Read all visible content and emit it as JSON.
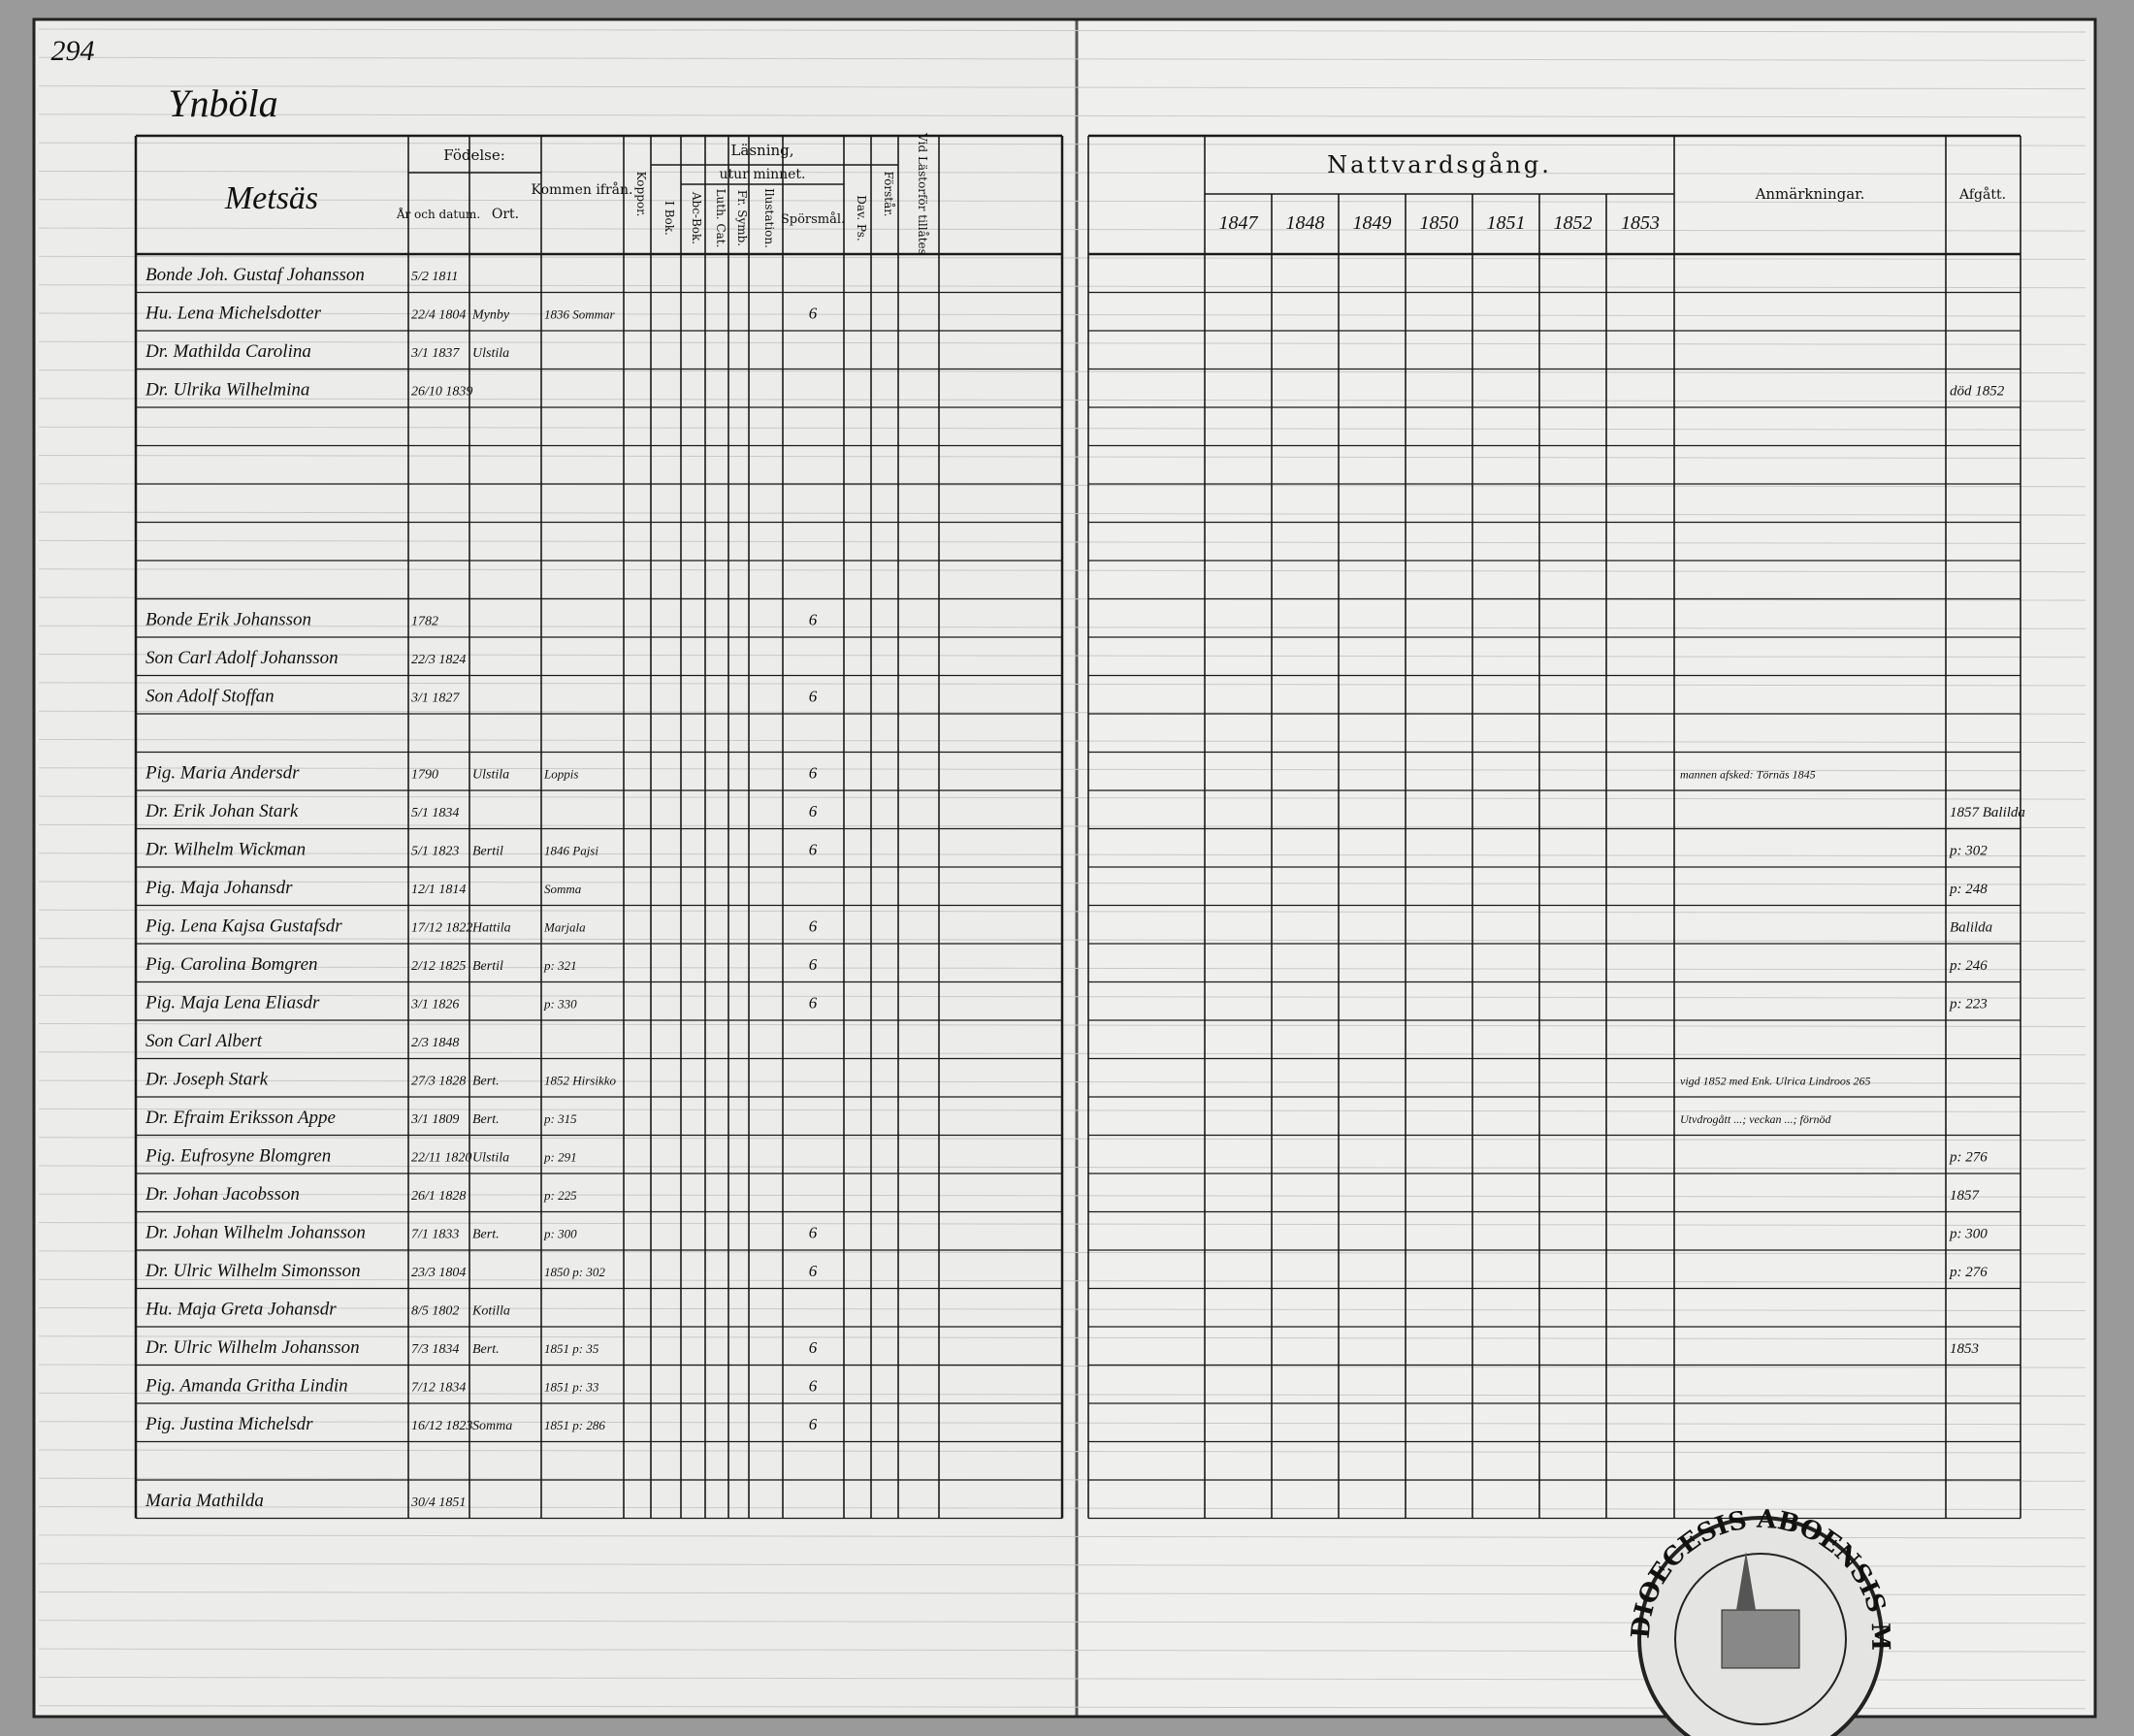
{
  "page_number": "294",
  "village": "Ynböla",
  "farm": "Metsäs",
  "headers": {
    "birth": "Födelse:",
    "birth_date": "År och datum.",
    "birth_place": "Ort.",
    "came_from": "Kommen ifrån.",
    "smallpox": "Koppor.",
    "reading": "Läsning,",
    "by_heart": "utur minnet.",
    "in_book": "I Bok.",
    "abc": "Abc-Bok.",
    "luth_cat": "Luth. Cat.",
    "fr_symb": "Fr. Symb.",
    "illustration": "Ilustation.",
    "questions": "Spörsmål.",
    "dav_ps": "Dav. Ps.",
    "understands": "Förstår.",
    "admitted": "Vid Lästorför tillåtes",
    "communion": "Nattvardsgång.",
    "remarks": "Anmärkningar.",
    "departed": "Afgått."
  },
  "communion_years": [
    "1847",
    "1848",
    "1849",
    "1850",
    "1851",
    "1852",
    "1853"
  ],
  "rows": [
    {
      "name": "Bonde Joh. Gustaf Johansson",
      "date": "5/2 1811"
    },
    {
      "name": "Hu. Lena Michelsdotter",
      "date": "22/4 1804",
      "place": "Mynby",
      "from": "1836 Sommar",
      "questions": "6"
    },
    {
      "name": "Dr. Mathilda Carolina",
      "date": "3/1 1837",
      "place": "Ulstila"
    },
    {
      "name": "Dr. Ulrika Wilhelmina",
      "date": "26/10 1839",
      "departed": "död 1852"
    },
    {
      "name": "Bonde Erik Johansson",
      "date": "1782",
      "questions": "6"
    },
    {
      "name": "Son Carl Adolf Johansson",
      "date": "22/3 1824"
    },
    {
      "name": "Son Adolf Stoffan",
      "date": "3/1 1827",
      "questions": "6"
    },
    {
      "name": "Pig. Maria Andersdr",
      "date": "1790",
      "place": "Ulstila",
      "from": "Loppis",
      "questions": "6",
      "remark": "mannen afsked: Törnäs 1845"
    },
    {
      "name": "Dr. Erik Johan Stark",
      "date": "5/1 1834",
      "questions": "6",
      "departed": "1857 Balilda"
    },
    {
      "name": "Dr. Wilhelm Wickman",
      "date": "5/1 1823",
      "place": "Bertil",
      "from": "1846 Pajsi",
      "questions": "6",
      "departed": "p: 302"
    },
    {
      "name": "Pig. Maja Johansdr",
      "date": "12/1 1814",
      "from": "Somma",
      "departed": "p: 248"
    },
    {
      "name": "Pig. Lena Kajsa Gustafsdr",
      "date": "17/12 1822",
      "place": "Hattila",
      "from": "Marjala",
      "questions": "6",
      "departed": "Balilda"
    },
    {
      "name": "Pig. Carolina Bomgren",
      "date": "2/12 1825",
      "place": "Bertil",
      "from": "p: 321",
      "questions": "6",
      "departed": "p: 246"
    },
    {
      "name": "Pig. Maja Lena Eliasdr",
      "date": "3/1 1826",
      "from": "p: 330",
      "questions": "6",
      "departed": "p: 223"
    },
    {
      "name": "Son Carl Albert",
      "date": "2/3 1848"
    },
    {
      "name": "Dr. Joseph Stark",
      "date": "27/3 1828",
      "place": "Bert.",
      "from": "1852 Hirsikko",
      "remark": "vigd 1852 med Enk. Ulrica Lindroos 265"
    },
    {
      "name": "Dr. Efraim Eriksson Appe",
      "date": "3/1 1809",
      "place": "Bert.",
      "from": "p: 315",
      "remark": "Utvdrogått ...; veckan ...; förnöd"
    },
    {
      "name": "Pig. Eufrosyne Blomgren",
      "date": "22/11 1820",
      "place": "Ulstila",
      "from": "p: 291",
      "departed": "p: 276"
    },
    {
      "name": "Dr. Johan Jacobsson",
      "date": "26/1 1828",
      "from": "p: 225",
      "departed": "1857"
    },
    {
      "name": "Dr. Johan Wilhelm Johansson",
      "date": "7/1 1833",
      "place": "Bert.",
      "from": "p: 300",
      "questions": "6",
      "departed": "p: 300"
    },
    {
      "name": "Dr. Ulric Wilhelm Simonsson",
      "date": "23/3 1804",
      "from": "1850 p: 302",
      "questions": "6",
      "departed": "p: 276"
    },
    {
      "name": "Hu. Maja Greta Johansdr",
      "date": "8/5 1802",
      "place": "Kotilla"
    },
    {
      "name": "Dr. Ulric Wilhelm Johansson",
      "date": "7/3 1834",
      "place": "Bert.",
      "from": "1851 p: 35",
      "questions": "6",
      "departed": "1853"
    },
    {
      "name": "Pig. Amanda Gritha Lindin",
      "date": "7/12 1834",
      "from": "1851 p: 33",
      "questions": "6"
    },
    {
      "name": "Pig. Justina Michelsdr",
      "date": "16/12 1823",
      "place": "Somma",
      "from": "1851 p: 286",
      "questions": "6"
    },
    {
      "name": "Maria Mathilda",
      "date": "30/4 1851"
    }
  ],
  "stamp": "DIOECESIS ABOENSIS MAGNI FINL"
}
